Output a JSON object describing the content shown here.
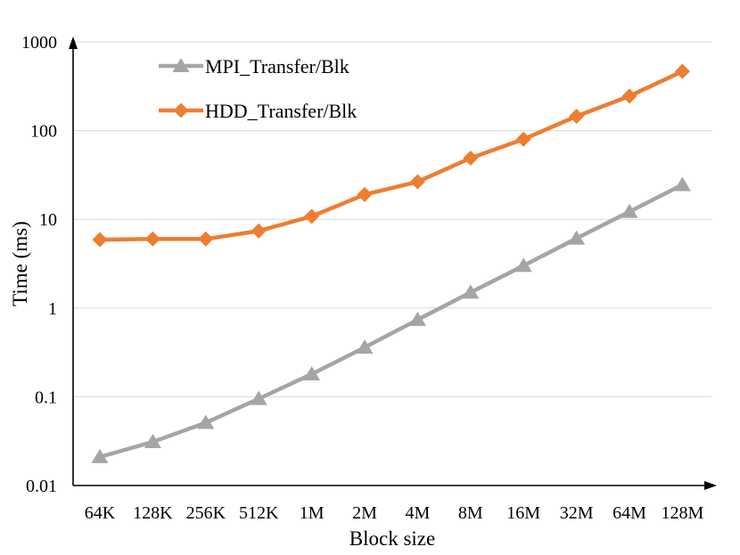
{
  "chart_data": {
    "type": "line",
    "title": "",
    "xlabel": "Block size",
    "ylabel": "Time (ms)",
    "yscale": "log",
    "ylim": [
      0.01,
      1000
    ],
    "y_ticks": [
      0.01,
      0.1,
      1,
      10,
      100,
      1000
    ],
    "y_tick_labels": [
      "0.01",
      "0.1",
      "1",
      "10",
      "100",
      "1000"
    ],
    "grid": true,
    "legend_position": "top-left",
    "categories": [
      "64K",
      "128K",
      "256K",
      "512K",
      "1M",
      "2M",
      "4M",
      "8M",
      "16M",
      "32M",
      "64M",
      "128M"
    ],
    "series": [
      {
        "name": "MPI_Transfer/Blk",
        "color": "#a5a5a5",
        "marker": "triangle",
        "values": [
          0.021,
          0.031,
          0.051,
          0.095,
          0.18,
          0.36,
          0.74,
          1.5,
          3.0,
          6.1,
          12.2,
          24.5
        ]
      },
      {
        "name": "HDD_Transfer/Blk",
        "color": "#ed7d31",
        "marker": "diamond",
        "values": [
          5.9,
          6.0,
          6.0,
          7.4,
          10.8,
          19.0,
          26.5,
          49.0,
          80.0,
          145.0,
          245.0,
          465.0
        ]
      }
    ]
  }
}
